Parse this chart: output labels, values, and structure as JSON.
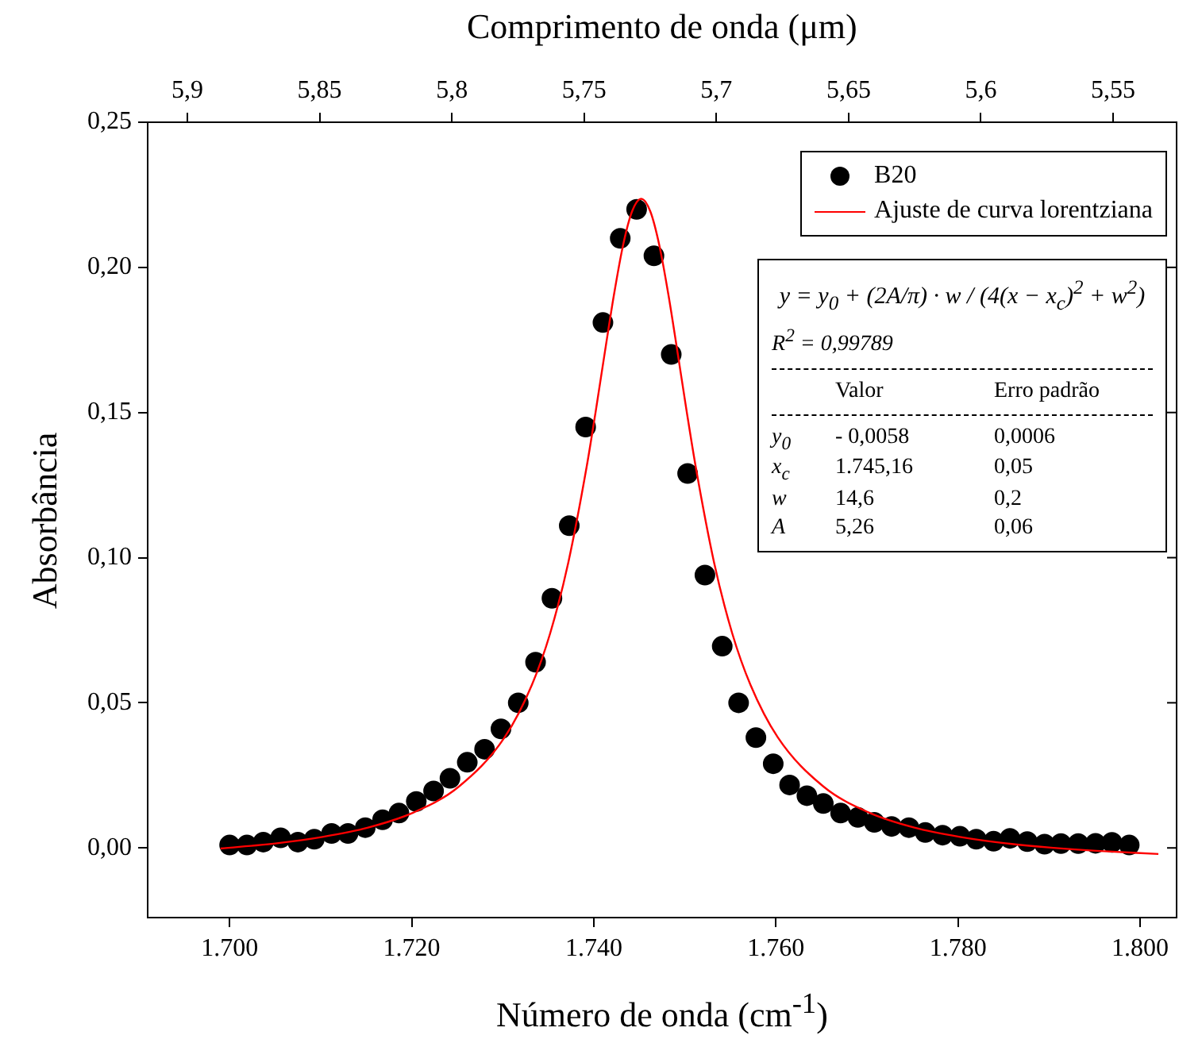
{
  "chart_data": {
    "type": "scatter",
    "xlabel": "Número de onda (cm$^{-1}$)",
    "ylabel": "Absorbância",
    "x2label": "Comprimento de onda (μm)",
    "xlim": [
      1691,
      1804
    ],
    "xticks": [
      {
        "value": 1700,
        "label": "1.700"
      },
      {
        "value": 1720,
        "label": "1.720"
      },
      {
        "value": 1740,
        "label": "1.740"
      },
      {
        "value": 1760,
        "label": "1.760"
      },
      {
        "value": 1780,
        "label": "1.780"
      },
      {
        "value": 1800,
        "label": "1.800"
      }
    ],
    "x2lim": [
      5.915,
      5.526
    ],
    "x2ticks": [
      {
        "value": 5.9,
        "label": "5,9"
      },
      {
        "value": 5.85,
        "label": "5,85"
      },
      {
        "value": 5.8,
        "label": "5,8"
      },
      {
        "value": 5.75,
        "label": "5,75"
      },
      {
        "value": 5.7,
        "label": "5,7"
      },
      {
        "value": 5.65,
        "label": "5,65"
      },
      {
        "value": 5.6,
        "label": "5,6"
      },
      {
        "value": 5.55,
        "label": "5,55"
      }
    ],
    "ylim": [
      -0.024,
      0.25
    ],
    "yticks": [
      {
        "value": 0,
        "label": "0,00"
      },
      {
        "value": 0.05,
        "label": "0,05"
      },
      {
        "value": 0.1,
        "label": "0,10"
      },
      {
        "value": 0.15,
        "label": "0,15"
      },
      {
        "value": 0.2,
        "label": "0,20"
      },
      {
        "value": 0.25,
        "label": "0,25"
      }
    ],
    "legend": "top right",
    "series": [
      {
        "name": "B20",
        "type": "scatter",
        "marker": "circle",
        "color": "#000000",
        "x": [
          1700.0,
          1701.9,
          1703.7,
          1705.6,
          1707.5,
          1709.3,
          1711.2,
          1713.0,
          1714.9,
          1716.8,
          1718.6,
          1720.5,
          1722.4,
          1724.2,
          1726.1,
          1728.0,
          1729.8,
          1731.7,
          1733.6,
          1735.4,
          1737.3,
          1739.1,
          1741.0,
          1742.9,
          1744.7,
          1746.6,
          1748.5,
          1750.3,
          1752.2,
          1754.1,
          1755.9,
          1757.8,
          1759.7,
          1761.5,
          1763.4,
          1765.2,
          1767.1,
          1769.0,
          1770.8,
          1772.7,
          1774.6,
          1776.4,
          1778.3,
          1780.2,
          1782.0,
          1783.9,
          1785.7,
          1787.6,
          1789.5,
          1791.3,
          1793.2,
          1795.1,
          1796.9,
          1798.8
        ],
        "values": [
          0.001,
          0.001,
          0.002,
          0.0035,
          0.002,
          0.003,
          0.005,
          0.005,
          0.007,
          0.0097,
          0.012,
          0.016,
          0.0196,
          0.024,
          0.0295,
          0.034,
          0.041,
          0.05,
          0.064,
          0.086,
          0.111,
          0.145,
          0.181,
          0.21,
          0.22,
          0.204,
          0.17,
          0.129,
          0.094,
          0.0695,
          0.05,
          0.038,
          0.029,
          0.0217,
          0.018,
          0.0153,
          0.012,
          0.0105,
          0.0088,
          0.0074,
          0.007,
          0.0053,
          0.0044,
          0.004,
          0.003,
          0.0023,
          0.0033,
          0.0022,
          0.0013,
          0.0015,
          0.0015,
          0.0016,
          0.0019,
          0.001
        ]
      },
      {
        "name": "Ajuste de curva lorentziana",
        "type": "line",
        "marker": "none",
        "line_style": "solid",
        "color": "#ff0000",
        "x": [
          1699.0,
          1705.2,
          1710.2,
          1715.2,
          1720.2,
          1725.2,
          1730.2,
          1733.2,
          1735.2,
          1737.2,
          1739.2,
          1740.2,
          1741.2,
          1742.2,
          1743.2,
          1744.2,
          1745.2,
          1746.2,
          1747.2,
          1748.2,
          1749.2,
          1750.2,
          1751.2,
          1753.2,
          1755.2,
          1757.2,
          1760.2,
          1765.2,
          1770.2,
          1775.2,
          1780.2,
          1785.2,
          1790.2,
          1795.2,
          1802.0
        ],
        "values": [
          -0.0002,
          0.0016,
          0.0038,
          0.007,
          0.0122,
          0.0212,
          0.0381,
          0.0562,
          0.0739,
          0.0984,
          0.1311,
          0.1503,
          0.1706,
          0.1904,
          0.2075,
          0.2193,
          0.2236,
          0.2193,
          0.2075,
          0.1904,
          0.1706,
          0.1503,
          0.1311,
          0.0984,
          0.0739,
          0.0562,
          0.0381,
          0.0212,
          0.0122,
          0.007,
          0.0038,
          0.0016,
          0.0001,
          -0.001,
          -0.0021
        ]
      }
    ],
    "annotations": [
      "y = y$_{0}$ + (2A/π) · w / (4(x − x$_{c}$)$^{2}$ + w$^{2}$)",
      "R$^{2}$ = 0,99789",
      "Valor",
      "Erro padrão",
      "y$_{0}$",
      "- 0,0058",
      "0,0006",
      "x$_{c}$",
      "1.745,16",
      "0,05",
      "w",
      "14,6",
      "0,2",
      "A",
      "5,26",
      "0,06"
    ]
  }
}
